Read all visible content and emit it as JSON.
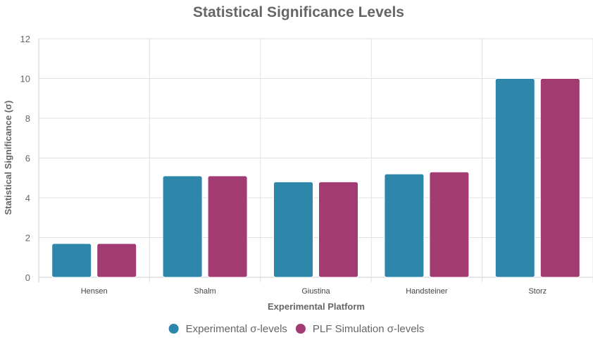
{
  "chart_data": {
    "type": "bar",
    "title": "Statistical Significance Levels",
    "xlabel": "Experimental Platform",
    "ylabel": "Statistical Significance (σ)",
    "categories": [
      "Hensen",
      "Shalm",
      "Giustina",
      "Handsteiner",
      "Storz"
    ],
    "series": [
      {
        "name": "Experimental σ-levels",
        "color": "#2e86ab",
        "values": [
          1.7,
          5.1,
          4.8,
          5.2,
          10.0
        ]
      },
      {
        "name": "PLF Simulation σ-levels",
        "color": "#a23b72",
        "values": [
          1.7,
          5.1,
          4.8,
          5.3,
          10.0
        ]
      }
    ],
    "ylim": [
      0,
      12
    ],
    "yticks": [
      0,
      2,
      4,
      6,
      8,
      10,
      12
    ],
    "grid": true,
    "legend_position": "bottom"
  }
}
